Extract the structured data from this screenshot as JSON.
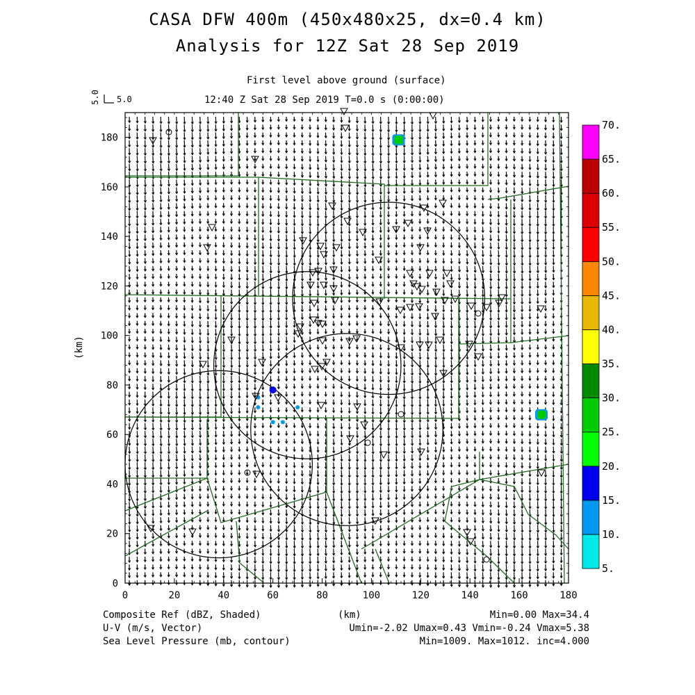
{
  "chart_data": {
    "type": "heatmap",
    "title_line1": "CASA DFW 400m (450x480x25, dx=0.4 km)",
    "title_line2": "Analysis for 12Z Sat 28 Sep 2019",
    "subtitle_line1": "First level above ground (surface)",
    "subtitle_line2": "12:40 Z Sat 28 Sep 2019    T=0.0 s (0:00:00)",
    "vector_ref_label": "5.0",
    "vector_ref_side_label": "5.0",
    "xlabel": "(km)",
    "ylabel": "(km)",
    "xlim": [
      0,
      180
    ],
    "ylim": [
      0,
      190
    ],
    "x_ticks": [
      "0",
      "20",
      "40",
      "60",
      "80",
      "100",
      "120",
      "140",
      "160",
      "180"
    ],
    "y_ticks": [
      "0",
      "20",
      "40",
      "60",
      "80",
      "100",
      "120",
      "140",
      "160",
      "180"
    ],
    "colorbar": {
      "levels": [
        "5.",
        "10.",
        "15.",
        "20.",
        "25.",
        "30.",
        "35.",
        "40.",
        "45.",
        "50.",
        "55.",
        "60.",
        "65.",
        "70."
      ],
      "colors": [
        "#00e8e8",
        "#0099ee",
        "#0000f0",
        "#00ff00",
        "#00cc00",
        "#008800",
        "#ffff00",
        "#e6b800",
        "#ff8800",
        "#ff0000",
        "#dd0000",
        "#bb0000",
        "#ff00ff"
      ]
    },
    "echoes": [
      {
        "x": 111,
        "y": 179,
        "dbz": 25
      },
      {
        "x": 169,
        "y": 68,
        "dbz": 25
      },
      {
        "x": 60,
        "y": 78,
        "dbz": 15
      },
      {
        "x": 54,
        "y": 75,
        "dbz": 10
      },
      {
        "x": 54,
        "y": 71,
        "dbz": 10
      },
      {
        "x": 60,
        "y": 65,
        "dbz": 10
      },
      {
        "x": 64,
        "y": 65,
        "dbz": 10
      },
      {
        "x": 70,
        "y": 71,
        "dbz": 10
      }
    ],
    "radar_rings": [
      {
        "x": 107,
        "y": 115,
        "r": 39
      },
      {
        "x": 74,
        "y": 88,
        "r": 38
      },
      {
        "x": 38,
        "y": 48,
        "r": 38
      },
      {
        "x": 90,
        "y": 62,
        "r": 39
      }
    ],
    "wind_vector_range": {
      "umin": -2.02,
      "umax": 0.43,
      "vmin": -0.24,
      "vmax": 5.38
    },
    "legend_left": [
      "Composite Ref (dBZ, Shaded)",
      "U-V (m/s, Vector)",
      "Sea Level Pressure (mb, contour)"
    ],
    "legend_center": "(km)",
    "legend_right": [
      "Min=0.00 Max=34.4",
      "Umin=-2.02 Umax=0.43 Vmin=-0.24 Vmax=5.38",
      "Min=1009. Max=1012. inc=4.000"
    ]
  }
}
